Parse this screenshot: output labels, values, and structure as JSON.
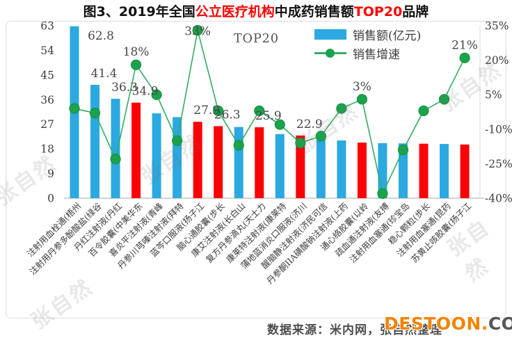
{
  "title": {
    "part1": "图3、2019年全国",
    "highlight1": "公立医疗机构",
    "part2": "中成药销售额",
    "highlight2": "TOP20",
    "part3": "品牌"
  },
  "legend": {
    "sales": "销售额(亿元)",
    "growth": "销售增速"
  },
  "inplot_label": "TOP20",
  "footer": {
    "source": "数据来源：米内网，张自然整理",
    "logo_orange": "DESTOON.",
    "logo_gray": "COM"
  },
  "watermark": "张自然",
  "colors": {
    "bar_blue": "#2ba9e0",
    "bar_red": "#fb0207",
    "line_green": "#33ac62",
    "marker_green": "#1ba24c",
    "title_red": "#fe0000",
    "logo_orange": "#f28400"
  },
  "chart_data": {
    "type": "combo (bar + line)",
    "title": "图3、2019年全国公立医疗机构中成药销售额TOP20品牌",
    "categories": [
      "注射用血栓通(梧州",
      "注射用丹参多酚酸盐(绿谷",
      "丹红注射液(丹红",
      "百令胶囊(中美华东",
      "喜炎平注射液(青峰",
      "丹参川芎嗪注射液(拜特",
      "蓝芩口服液(扬子江",
      "脑心通胶囊(步长",
      "康艾注射液(长白山",
      "复方丹参滴丸(天士力",
      "康莱特注射液(康莱特",
      "蒲地蓝消炎口服液(济川",
      "醒脑静注射液(济民可信",
      "丹参酮IIA磺酸钠注射液(上药",
      "通心络胶囊(以岭",
      "疏血通注射液(友搏",
      "注射用血塞通(珍宝岛",
      "稳心颗粒(步长",
      "注射用血塞通(昆药",
      "苏黄止咳胶囊(扬子江"
    ],
    "series": [
      {
        "name": "销售额(亿元)",
        "type": "bar",
        "values": [
          62.8,
          41.4,
          36.3,
          34.9,
          31.0,
          29.6,
          27.9,
          26.3,
          26.0,
          25.9,
          23.4,
          22.9,
          22.4,
          21.1,
          20.3,
          20.1,
          20.0,
          19.9,
          19.8,
          19.6
        ]
      },
      {
        "name": "销售增速",
        "type": "line",
        "values": [
          -1,
          -3,
          -23,
          18,
          5,
          -15,
          33,
          -2,
          -17,
          -2,
          -8,
          -16,
          -13,
          -1,
          3,
          -38,
          -19,
          -2,
          3,
          21
        ]
      }
    ],
    "bar_red_indices": [
      3,
      6,
      7,
      9,
      11,
      14,
      17,
      19
    ],
    "bar_labels": {
      "0": "62.8",
      "1": "41.4",
      "2": "36.3",
      "3": "34.9",
      "6": "27.9",
      "7": "26.3",
      "9": "25.9",
      "11": "22.9"
    },
    "line_labels": {
      "3": "18%",
      "6": "33%",
      "14": "3%",
      "19": "21%"
    },
    "left_axis": {
      "ticks": [
        63,
        54,
        45,
        36,
        27,
        18,
        9,
        0
      ],
      "min": 0,
      "max": 63
    },
    "right_axis": {
      "tick_values": [
        35,
        20,
        5,
        -10,
        -25,
        -40
      ],
      "tick_labels": [
        "35%",
        "20%",
        "5%",
        "-10%",
        "-25%",
        "-40%"
      ],
      "min": -40,
      "max": 35
    },
    "grid": false,
    "legend_position": "top-right-inside"
  }
}
